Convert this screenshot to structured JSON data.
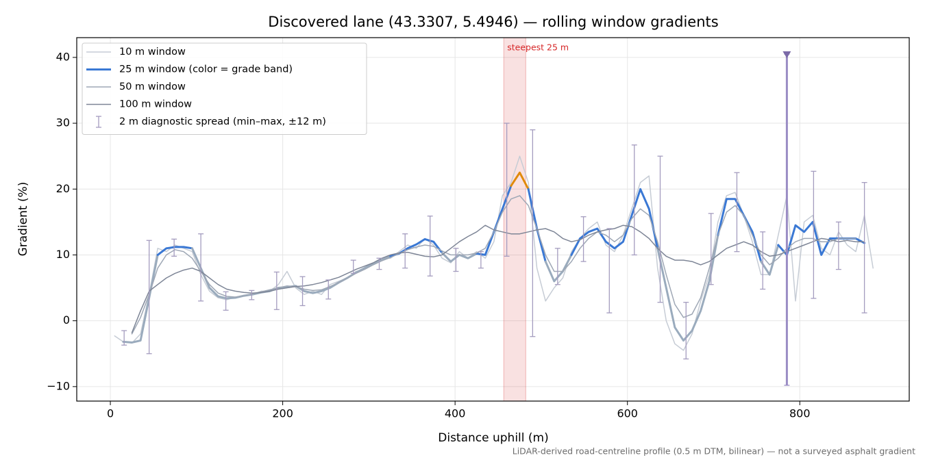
{
  "chart_data": {
    "type": "line",
    "title": "Discovered lane (43.3307, 5.4946) — rolling window gradients",
    "x_label": "Distance uphill (m)",
    "y_label": "Gradient (%)",
    "footnote": "LiDAR-derived road-centreline profile (0.5 m DTM, bilinear) — not a surveyed asphalt gradient",
    "xlim": [
      -39,
      927
    ],
    "ylim": [
      -12.2,
      43
    ],
    "xticks": [
      0,
      200,
      400,
      600,
      800
    ],
    "yticks": [
      {
        "value": -10,
        "label": "−10"
      },
      0,
      10,
      20,
      30,
      40
    ],
    "grid": true,
    "legend": "upper left",
    "x": [
      5,
      15,
      25,
      35,
      45,
      55,
      65,
      75,
      85,
      95,
      105,
      115,
      125,
      135,
      145,
      155,
      165,
      175,
      185,
      195,
      205,
      215,
      225,
      235,
      245,
      255,
      265,
      275,
      285,
      295,
      305,
      315,
      325,
      335,
      345,
      355,
      365,
      375,
      385,
      395,
      405,
      415,
      425,
      435,
      445,
      455,
      465,
      475,
      485,
      495,
      505,
      515,
      525,
      535,
      545,
      555,
      565,
      575,
      585,
      595,
      605,
      615,
      625,
      635,
      645,
      655,
      665,
      675,
      685,
      695,
      705,
      715,
      725,
      735,
      745,
      755,
      765,
      775,
      785,
      795,
      805,
      815,
      825,
      835,
      845,
      855,
      865,
      875,
      885
    ],
    "series": [
      {
        "name": "10 m window",
        "color": "#c6ccd5",
        "width": 1.5,
        "values": [
          -2.3,
          -3.2,
          -3.4,
          -2,
          4,
          11,
          10.5,
          11.5,
          11,
          10.5,
          7,
          4.5,
          3.5,
          3.2,
          3.6,
          3.8,
          4,
          4.5,
          4.5,
          5.5,
          7.5,
          5,
          4,
          4.5,
          4,
          5.5,
          6,
          6.5,
          7.5,
          7.8,
          8.5,
          9.5,
          9.5,
          10.5,
          11.5,
          11,
          12.5,
          11.5,
          9.5,
          8.8,
          10.5,
          9.5,
          10.5,
          9.5,
          12,
          19,
          21,
          25,
          21,
          8,
          3,
          5,
          6.5,
          10.5,
          12.5,
          14,
          15,
          11.5,
          10.5,
          13,
          17,
          21,
          22,
          8,
          0,
          -3.5,
          -4.5,
          -2,
          3,
          7,
          15,
          19,
          19.5,
          16,
          12,
          7,
          7,
          13,
          19,
          3,
          15,
          16,
          11,
          10,
          13.5,
          11.5,
          10.5,
          16,
          8
        ]
      },
      {
        "name": "25 m window (color = grade band)",
        "color": "#3a78d4",
        "width": 3,
        "grade_bands": [
          {
            "below": 10,
            "color": "#9aabbd"
          },
          {
            "below": 20,
            "color": "#3a78d4"
          },
          {
            "color": "#e08a0b"
          }
        ],
        "values": [
          null,
          -3.2,
          -3.3,
          -3,
          3.5,
          10,
          11,
          11.2,
          11.2,
          11,
          8,
          5,
          3.7,
          3.4,
          3.5,
          3.8,
          4,
          4.3,
          4.5,
          5,
          5.1,
          5.3,
          4.5,
          4.2,
          4.5,
          5,
          5.8,
          6.5,
          7.3,
          8,
          8.7,
          9.2,
          9.8,
          10.2,
          11,
          11.6,
          12.4,
          12,
          10.3,
          9,
          10,
          9.5,
          10.2,
          10,
          13.5,
          17,
          20.5,
          22.5,
          20,
          14,
          9,
          6,
          7.5,
          10,
          12.5,
          13.5,
          14,
          12,
          11,
          12,
          16,
          20,
          17,
          11,
          5,
          -1,
          -3,
          -1.5,
          1.5,
          6,
          13,
          18.5,
          18.5,
          16,
          13.5,
          9,
          7,
          11.5,
          10,
          14.5,
          13.5,
          15,
          10,
          12.5,
          12.5,
          12.5,
          12.5,
          11.8,
          null
        ]
      },
      {
        "name": "50 m window",
        "color": "#9ea7b5",
        "width": 1.5,
        "values": [
          null,
          null,
          -2,
          0.5,
          4,
          8,
          10,
          10.8,
          10.5,
          9.5,
          7.5,
          5.5,
          4.2,
          3.7,
          3.6,
          3.8,
          4.1,
          4.4,
          4.7,
          5,
          5.3,
          5.2,
          4.8,
          4.6,
          4.7,
          5.2,
          5.8,
          6.5,
          7.2,
          7.8,
          8.5,
          9.1,
          9.6,
          10.2,
          10.8,
          11.2,
          11.5,
          11.3,
          10.6,
          10,
          10,
          10,
          10.3,
          11,
          13.5,
          16.5,
          18.5,
          19,
          17.5,
          14,
          10,
          7.5,
          7.5,
          9,
          11,
          12.5,
          13.5,
          13,
          12,
          13,
          15.5,
          17,
          16,
          12,
          7,
          2.5,
          0.5,
          1,
          3.5,
          8,
          13,
          16.5,
          17.5,
          16,
          13,
          10,
          8.5,
          9.5,
          11,
          12,
          12.5,
          12.5,
          12,
          12,
          12.5,
          12.5,
          12.5,
          null,
          null
        ]
      },
      {
        "name": "100 m window",
        "color": "#7d8596",
        "width": 1.5,
        "values": [
          null,
          null,
          -1.8,
          1.5,
          4.5,
          5.5,
          6.5,
          7.2,
          7.7,
          8,
          7.5,
          6.5,
          5.5,
          4.8,
          4.5,
          4.3,
          4.2,
          4.3,
          4.5,
          4.8,
          5,
          5.2,
          5.3,
          5.5,
          5.8,
          6.2,
          6.6,
          7.2,
          7.8,
          8.3,
          8.8,
          9.5,
          10,
          10.3,
          10.4,
          10.1,
          9.8,
          9.7,
          10,
          11,
          12,
          12.8,
          13.5,
          14.5,
          13.8,
          13.5,
          13.2,
          13.2,
          13.5,
          13.8,
          14,
          13.5,
          12.5,
          12,
          12.3,
          13,
          13.5,
          13.8,
          14,
          14.5,
          14.3,
          13.5,
          12.5,
          11,
          9.8,
          9.2,
          9.2,
          9,
          8.5,
          9,
          10,
          11,
          11.5,
          12,
          11.5,
          10.5,
          9.8,
          10,
          10.5,
          11,
          11.5,
          12,
          12.5,
          12.3,
          12,
          12.2,
          12,
          12,
          null
        ]
      }
    ],
    "spread": {
      "name": "2 m diagnostic spread (min–max, ±12 m)",
      "color": "#a49cbf",
      "highlight_index": 26,
      "highlight_color": "#9a8cc4",
      "x": [
        16,
        45,
        74,
        105,
        134,
        164,
        193,
        223,
        253,
        282,
        312,
        342,
        371,
        401,
        430,
        460,
        490,
        519,
        549,
        579,
        608,
        638,
        668,
        697,
        727,
        757,
        785,
        816,
        845,
        875
      ],
      "low": [
        -3.7,
        -5,
        9.8,
        3,
        1.6,
        3.2,
        1.7,
        2.3,
        3.3,
        7.2,
        7.8,
        8,
        6.8,
        7.5,
        8,
        9.8,
        -2.4,
        5.5,
        9,
        1.2,
        10,
        2.8,
        -5.8,
        5.5,
        10.5,
        4.8,
        -9.8,
        3.4,
        7.8,
        1.2
      ],
      "high": [
        -1.5,
        12.2,
        12.4,
        13.2,
        4.4,
        4.6,
        7.4,
        6.7,
        6.2,
        9.2,
        9.5,
        13.2,
        15.9,
        11,
        10.5,
        30,
        29,
        11,
        15.8,
        14,
        26.7,
        25,
        2.8,
        16.3,
        22.5,
        13.5,
        40.5,
        22.7,
        15,
        21
      ]
    },
    "steepest": {
      "label": "steepest 25 m",
      "span": [
        456.5,
        482
      ],
      "color": "#d62728"
    }
  }
}
